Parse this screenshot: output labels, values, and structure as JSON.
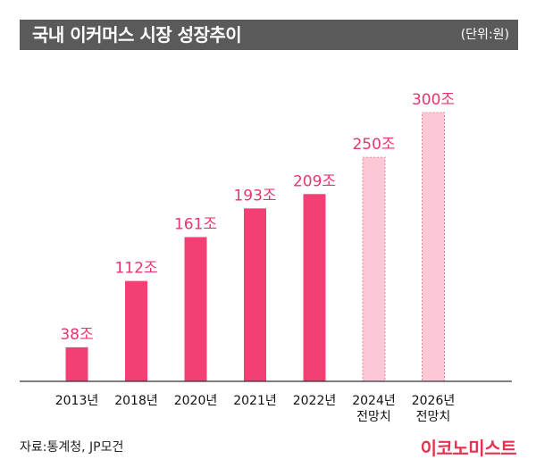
{
  "header": {
    "title": "국내 이커머스 시장 성장추이",
    "unit": "(단위:원)"
  },
  "footer": {
    "source": "자료:통계청, JP모건",
    "brand": "이코노미스트"
  },
  "colors": {
    "actual_bar": "#f23f74",
    "forecast_bar": "#fcc8d6",
    "forecast_border": "#e9869f",
    "value_label": "#e8356b",
    "title_bar": "#5a5a5a"
  },
  "chart_data": {
    "type": "bar",
    "categories": [
      "2013년",
      "2018년",
      "2020년",
      "2021년",
      "2022년",
      "2024년\n전망치",
      "2026년\n전망치"
    ],
    "values": [
      38,
      112,
      161,
      193,
      209,
      250,
      300
    ],
    "value_labels": [
      "38조",
      "112조",
      "161조",
      "193조",
      "209조",
      "250조",
      "300조"
    ],
    "forecast": [
      false,
      false,
      false,
      false,
      false,
      true,
      true
    ],
    "title": "국내 이커머스 시장 성장추이",
    "unit": "(단위:원)",
    "ylim": [
      0,
      300
    ],
    "grid": false,
    "legend": "none"
  }
}
